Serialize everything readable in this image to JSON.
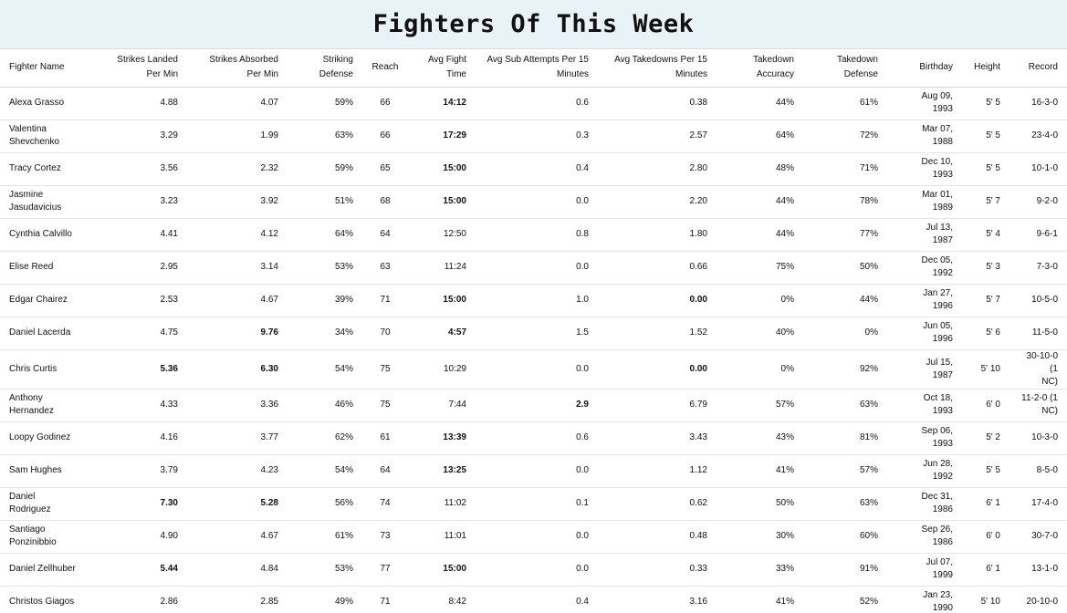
{
  "title": "Fighters Of This Week",
  "headers": [
    {
      "lines": [
        "Fighter Name"
      ]
    },
    {
      "lines": [
        "Strikes Landed",
        "Per Min"
      ]
    },
    {
      "lines": [
        "Strikes Absorbed",
        "Per Min"
      ]
    },
    {
      "lines": [
        "Striking",
        "Defense"
      ]
    },
    {
      "lines": [
        "Reach"
      ]
    },
    {
      "lines": [
        "Avg Fight",
        "Time"
      ]
    },
    {
      "lines": [
        "Avg Sub Attempts Per 15",
        "Minutes"
      ]
    },
    {
      "lines": [
        "Avg Takedowns Per 15",
        "Minutes"
      ]
    },
    {
      "lines": [
        "Takedown",
        "Accuracy"
      ]
    },
    {
      "lines": [
        "Takedown",
        "Defense"
      ]
    },
    {
      "lines": [
        "Birthday"
      ]
    },
    {
      "lines": [
        "Height"
      ]
    },
    {
      "lines": [
        "Record"
      ]
    }
  ],
  "rows": [
    {
      "name": [
        "Alexa Grasso"
      ],
      "slpm": "4.88",
      "sapm": "4.07",
      "strdef": "59%",
      "reach": "66",
      "time": "14:12",
      "sub": "0.6",
      "td": "0.38",
      "tdacc": "44%",
      "tddef": "61%",
      "bday": [
        "Aug 09,",
        "1993"
      ],
      "height": "5' 5",
      "record": [
        "16-3-0"
      ]
    },
    {
      "name": [
        "Valentina",
        "Shevchenko"
      ],
      "slpm": "3.29",
      "sapm": "1.99",
      "strdef": "63%",
      "reach": "66",
      "time": "17:29",
      "sub": "0.3",
      "td": "2.57",
      "tdacc": "64%",
      "tddef": "72%",
      "bday": [
        "Mar 07,",
        "1988"
      ],
      "height": "5' 5",
      "record": [
        "23-4-0"
      ]
    },
    {
      "name": [
        "Tracy Cortez"
      ],
      "slpm": "3.56",
      "sapm": "2.32",
      "strdef": "59%",
      "reach": "65",
      "time": "15:00",
      "sub": "0.4",
      "td": "2.80",
      "tdacc": "48%",
      "tddef": "71%",
      "bday": [
        "Dec 10,",
        "1993"
      ],
      "height": "5' 5",
      "record": [
        "10-1-0"
      ]
    },
    {
      "name": [
        "Jasmine",
        "Jasudavicius"
      ],
      "slpm": "3.23",
      "sapm": "3.92",
      "strdef": "51%",
      "reach": "68",
      "time": "15:00",
      "sub": "0.0",
      "td": "2.20",
      "tdacc": "44%",
      "tddef": "78%",
      "bday": [
        "Mar 01,",
        "1989"
      ],
      "height": "5' 7",
      "record": [
        "9-2-0"
      ]
    },
    {
      "name": [
        "Cynthia Calvillo"
      ],
      "slpm": "4.41",
      "sapm": "4.12",
      "strdef": "64%",
      "reach": "64",
      "time": "12:50",
      "sub": "0.8",
      "td": "1.80",
      "tdacc": "44%",
      "tddef": "77%",
      "bday": [
        "Jul 13,",
        "1987"
      ],
      "height": "5' 4",
      "record": [
        "9-6-1"
      ]
    },
    {
      "name": [
        "Elise Reed"
      ],
      "slpm": "2.95",
      "sapm": "3.14",
      "strdef": "53%",
      "reach": "63",
      "time": "11:24",
      "sub": "0.0",
      "td": "0.66",
      "tdacc": "75%",
      "tddef": "50%",
      "bday": [
        "Dec 05,",
        "1992"
      ],
      "height": "5' 3",
      "record": [
        "7-3-0"
      ]
    },
    {
      "name": [
        "Edgar Chairez"
      ],
      "slpm": "2.53",
      "sapm": "4.67",
      "strdef": "39%",
      "reach": "71",
      "time": "15:00",
      "sub": "1.0",
      "td": "0.00",
      "tdacc": "0%",
      "tddef": "44%",
      "bday": [
        "Jan 27,",
        "1996"
      ],
      "height": "5' 7",
      "record": [
        "10-5-0"
      ]
    },
    {
      "name": [
        "Daniel Lacerda"
      ],
      "slpm": "4.75",
      "sapm": "9.76",
      "strdef": "34%",
      "reach": "70",
      "time": "4:57",
      "sub": "1.5",
      "td": "1.52",
      "tdacc": "40%",
      "tddef": "0%",
      "bday": [
        "Jun 05,",
        "1996"
      ],
      "height": "5' 6",
      "record": [
        "11-5-0"
      ]
    },
    {
      "name": [
        "Chris Curtis"
      ],
      "slpm": "5.36",
      "sapm": "6.30",
      "strdef": "54%",
      "reach": "75",
      "time": "10:29",
      "sub": "0.0",
      "td": "0.00",
      "tdacc": "0%",
      "tddef": "92%",
      "bday": [
        "Jul 15,",
        "1987"
      ],
      "height": "5' 10",
      "record": [
        "30-10-0 (1",
        "NC)"
      ]
    },
    {
      "name": [
        "Anthony",
        "Hernandez"
      ],
      "slpm": "4.33",
      "sapm": "3.36",
      "strdef": "46%",
      "reach": "75",
      "time": "7:44",
      "sub": "2.9",
      "td": "6.79",
      "tdacc": "57%",
      "tddef": "63%",
      "bday": [
        "Oct 18,",
        "1993"
      ],
      "height": "6' 0",
      "record": [
        "11-2-0 (1",
        "NC)"
      ]
    },
    {
      "name": [
        "Loopy Godinez"
      ],
      "slpm": "4.16",
      "sapm": "3.77",
      "strdef": "62%",
      "reach": "61",
      "time": "13:39",
      "sub": "0.6",
      "td": "3.43",
      "tdacc": "43%",
      "tddef": "81%",
      "bday": [
        "Sep 06,",
        "1993"
      ],
      "height": "5' 2",
      "record": [
        "10-3-0"
      ]
    },
    {
      "name": [
        "Sam Hughes"
      ],
      "slpm": "3.79",
      "sapm": "4.23",
      "strdef": "54%",
      "reach": "64",
      "time": "13:25",
      "sub": "0.0",
      "td": "1.12",
      "tdacc": "41%",
      "tddef": "57%",
      "bday": [
        "Jun 28,",
        "1992"
      ],
      "height": "5' 5",
      "record": [
        "8-5-0"
      ]
    },
    {
      "name": [
        "Daniel Rodriguez"
      ],
      "slpm": "7.30",
      "sapm": "5.28",
      "strdef": "56%",
      "reach": "74",
      "time": "11:02",
      "sub": "0.1",
      "td": "0.62",
      "tdacc": "50%",
      "tddef": "63%",
      "bday": [
        "Dec 31,",
        "1986"
      ],
      "height": "6' 1",
      "record": [
        "17-4-0"
      ]
    },
    {
      "name": [
        "Santiago",
        "Ponzinibbio"
      ],
      "slpm": "4.90",
      "sapm": "4.67",
      "strdef": "61%",
      "reach": "73",
      "time": "11:01",
      "sub": "0.0",
      "td": "0.48",
      "tdacc": "30%",
      "tddef": "60%",
      "bday": [
        "Sep 26,",
        "1986"
      ],
      "height": "6' 0",
      "record": [
        "30-7-0"
      ]
    },
    {
      "name": [
        "Daniel Zellhuber"
      ],
      "slpm": "5.44",
      "sapm": "4.84",
      "strdef": "53%",
      "reach": "77",
      "time": "15:00",
      "sub": "0.0",
      "td": "0.33",
      "tdacc": "33%",
      "tddef": "91%",
      "bday": [
        "Jul 07,",
        "1999"
      ],
      "height": "6' 1",
      "record": [
        "13-1-0"
      ]
    },
    {
      "name": [
        "Christos Giagos"
      ],
      "slpm": "2.86",
      "sapm": "2.85",
      "strdef": "49%",
      "reach": "71",
      "time": "8:42",
      "sub": "0.4",
      "td": "3.16",
      "tdacc": "41%",
      "tddef": "52%",
      "bday": [
        "Jan 23,",
        "1990"
      ],
      "height": "5' 10",
      "record": [
        "20-10-0"
      ]
    }
  ]
}
